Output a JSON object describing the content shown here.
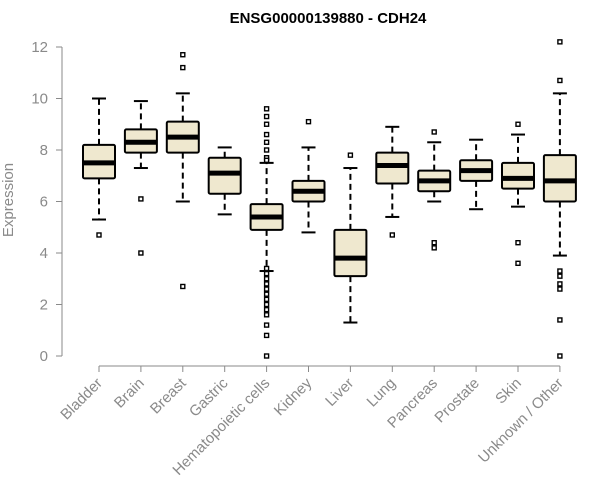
{
  "chart_data": {
    "type": "boxplot",
    "title": "ENSG00000139880 - CDH24",
    "xlabel": "",
    "ylabel": "Expression",
    "ylim": [
      0,
      12
    ],
    "yticks": [
      0,
      2,
      4,
      6,
      8,
      10,
      12
    ],
    "grid": false,
    "categories": [
      "Bladder",
      "Brain",
      "Breast",
      "Gastric",
      "Hematopoietic cells",
      "Kidney",
      "Liver",
      "Lung",
      "Pancreas",
      "Prostate",
      "Skin",
      "Unknown / Other"
    ],
    "boxes": [
      {
        "category": "Bladder",
        "whisker_low": 5.3,
        "q1": 6.9,
        "median": 7.5,
        "q3": 8.2,
        "whisker_high": 10.0,
        "outliers": [
          4.7
        ]
      },
      {
        "category": "Brain",
        "whisker_low": 7.3,
        "q1": 7.9,
        "median": 8.3,
        "q3": 8.8,
        "whisker_high": 9.9,
        "outliers": [
          6.1,
          4.0
        ]
      },
      {
        "category": "Breast",
        "whisker_low": 6.0,
        "q1": 7.9,
        "median": 8.5,
        "q3": 9.1,
        "whisker_high": 10.2,
        "outliers": [
          11.7,
          11.2,
          2.7
        ]
      },
      {
        "category": "Gastric",
        "whisker_low": 5.5,
        "q1": 6.3,
        "median": 7.1,
        "q3": 7.7,
        "whisker_high": 8.1,
        "outliers": []
      },
      {
        "category": "Hematopoietic cells",
        "whisker_low": 3.3,
        "q1": 4.9,
        "median": 5.4,
        "q3": 5.9,
        "whisker_high": 7.5,
        "outliers": [
          9.6,
          9.3,
          9.0,
          8.6,
          8.3,
          8.0,
          7.7,
          7.6,
          3.4,
          3.2,
          3.0,
          2.8,
          2.6,
          2.4,
          2.2,
          2.0,
          1.8,
          1.6,
          1.2,
          0.8,
          0.0
        ]
      },
      {
        "category": "Kidney",
        "whisker_low": 4.8,
        "q1": 6.0,
        "median": 6.4,
        "q3": 6.8,
        "whisker_high": 8.1,
        "outliers": [
          9.1
        ]
      },
      {
        "category": "Liver",
        "whisker_low": 1.3,
        "q1": 3.1,
        "median": 3.8,
        "q3": 4.9,
        "whisker_high": 7.3,
        "outliers": [
          7.8
        ]
      },
      {
        "category": "Lung",
        "whisker_low": 5.4,
        "q1": 6.7,
        "median": 7.4,
        "q3": 7.9,
        "whisker_high": 8.9,
        "outliers": [
          4.7
        ]
      },
      {
        "category": "Pancreas",
        "whisker_low": 6.0,
        "q1": 6.4,
        "median": 6.8,
        "q3": 7.2,
        "whisker_high": 8.3,
        "outliers": [
          8.7,
          4.4,
          4.2
        ]
      },
      {
        "category": "Prostate",
        "whisker_low": 5.7,
        "q1": 6.8,
        "median": 7.2,
        "q3": 7.6,
        "whisker_high": 8.4,
        "outliers": []
      },
      {
        "category": "Skin",
        "whisker_low": 5.8,
        "q1": 6.5,
        "median": 6.9,
        "q3": 7.5,
        "whisker_high": 8.6,
        "outliers": [
          9.0,
          4.4,
          3.6
        ]
      },
      {
        "category": "Unknown / Other",
        "whisker_low": 3.9,
        "q1": 6.0,
        "median": 6.8,
        "q3": 7.8,
        "whisker_high": 10.2,
        "outliers": [
          12.2,
          10.7,
          3.3,
          3.1,
          2.8,
          2.6,
          1.4,
          0.0
        ]
      }
    ],
    "colors": {
      "box_fill": "#efe8cf",
      "stroke": "#000000",
      "axis": "#8a8a8a"
    }
  }
}
